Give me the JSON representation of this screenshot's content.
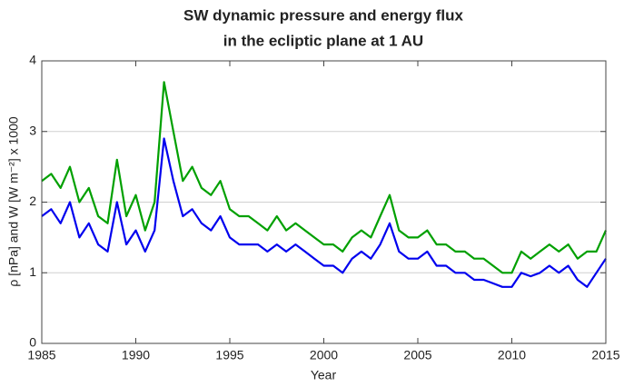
{
  "chart_data": {
    "type": "line",
    "title": [
      "SW dynamic pressure and energy flux",
      "in the ecliptic plane at 1 AU"
    ],
    "x_label": "Year",
    "y_label": "ρ [nPa] and W [W m⁻²] x 1000",
    "x": [
      1985,
      1985.5,
      1986,
      1986.5,
      1987,
      1987.5,
      1988,
      1988.5,
      1989,
      1989.5,
      1990,
      1990.5,
      1991,
      1991.5,
      1992,
      1992.5,
      1993,
      1993.5,
      1994,
      1994.5,
      1995,
      1995.5,
      1996,
      1996.5,
      1997,
      1997.5,
      1998,
      1998.5,
      1999,
      1999.5,
      2000,
      2000.5,
      2001,
      2001.5,
      2002,
      2002.5,
      2003,
      2003.5,
      2004,
      2004.5,
      2005,
      2005.5,
      2006,
      2006.5,
      2007,
      2007.5,
      2008,
      2008.5,
      2009,
      2009.5,
      2010,
      2010.5,
      2011,
      2011.5,
      2012,
      2012.5,
      2013,
      2013.5,
      2014,
      2014.5,
      2015
    ],
    "series": [
      {
        "color": "#00a000",
        "values": [
          2.3,
          2.4,
          2.2,
          2.5,
          2.0,
          2.2,
          1.8,
          1.7,
          2.6,
          1.8,
          2.1,
          1.6,
          2.0,
          3.7,
          3.0,
          2.3,
          2.5,
          2.2,
          2.1,
          2.3,
          1.9,
          1.8,
          1.8,
          1.7,
          1.6,
          1.8,
          1.6,
          1.7,
          1.6,
          1.5,
          1.4,
          1.4,
          1.3,
          1.5,
          1.6,
          1.5,
          1.8,
          2.1,
          1.6,
          1.5,
          1.5,
          1.6,
          1.4,
          1.4,
          1.3,
          1.3,
          1.2,
          1.2,
          1.1,
          1.0,
          1.0,
          1.3,
          1.2,
          1.3,
          1.4,
          1.3,
          1.4,
          1.2,
          1.3,
          1.3,
          1.6
        ]
      },
      {
        "color": "#0000ee",
        "values": [
          1.8,
          1.9,
          1.7,
          2.0,
          1.5,
          1.7,
          1.4,
          1.3,
          2.0,
          1.4,
          1.6,
          1.3,
          1.6,
          2.9,
          2.3,
          1.8,
          1.9,
          1.7,
          1.6,
          1.8,
          1.5,
          1.4,
          1.4,
          1.4,
          1.3,
          1.4,
          1.3,
          1.4,
          1.3,
          1.2,
          1.1,
          1.1,
          1.0,
          1.2,
          1.3,
          1.2,
          1.4,
          1.7,
          1.3,
          1.2,
          1.2,
          1.3,
          1.1,
          1.1,
          1.0,
          1.0,
          0.9,
          0.9,
          0.85,
          0.8,
          0.8,
          1.0,
          0.95,
          1.0,
          1.1,
          1.0,
          1.1,
          0.9,
          0.8,
          1.0,
          1.2
        ]
      }
    ],
    "xlim": [
      1985,
      2015
    ],
    "xticks": [
      1985,
      1990,
      1995,
      2000,
      2005,
      2010,
      2015
    ],
    "ylim": [
      0,
      4
    ],
    "yticks": [
      0,
      1,
      2,
      3,
      4
    ],
    "grid": true
  }
}
